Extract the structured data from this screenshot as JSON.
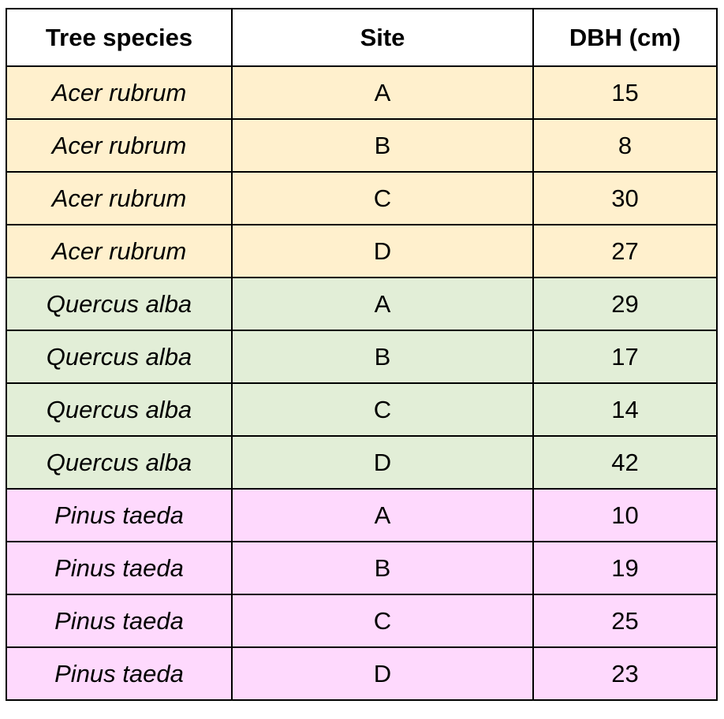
{
  "table": {
    "headers": [
      "Tree species",
      "Site",
      "DBH (cm)"
    ],
    "group_colors": {
      "Acer rubrum": "#fff0cd",
      "Quercus alba": "#e2eed7",
      "Pinus taeda": "#fed9fd"
    },
    "rows": [
      {
        "species": "Acer rubrum",
        "site": "A",
        "dbh": "15"
      },
      {
        "species": "Acer rubrum",
        "site": "B",
        "dbh": "8"
      },
      {
        "species": "Acer rubrum",
        "site": "C",
        "dbh": "30"
      },
      {
        "species": "Acer rubrum",
        "site": "D",
        "dbh": "27"
      },
      {
        "species": "Quercus alba",
        "site": "A",
        "dbh": "29"
      },
      {
        "species": "Quercus alba",
        "site": "B",
        "dbh": "17"
      },
      {
        "species": "Quercus alba",
        "site": "C",
        "dbh": "14"
      },
      {
        "species": "Quercus alba",
        "site": "D",
        "dbh": "42"
      },
      {
        "species": "Pinus taeda",
        "site": "A",
        "dbh": "10"
      },
      {
        "species": "Pinus taeda",
        "site": "B",
        "dbh": "19"
      },
      {
        "species": "Pinus taeda",
        "site": "C",
        "dbh": "25"
      },
      {
        "species": "Pinus taeda",
        "site": "D",
        "dbh": "23"
      }
    ]
  }
}
